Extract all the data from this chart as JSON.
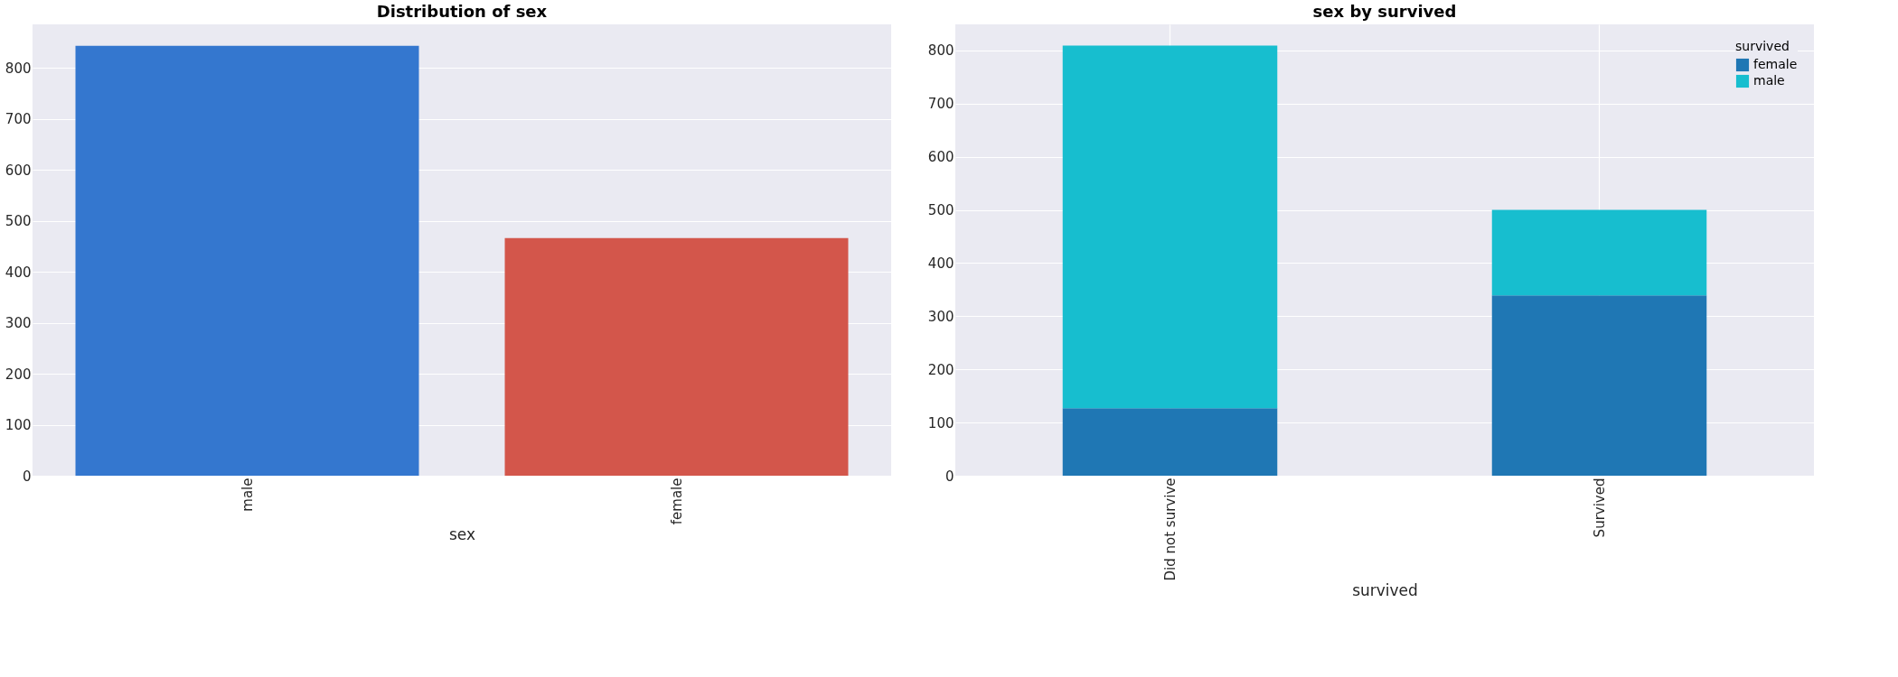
{
  "chart_data": [
    {
      "type": "bar",
      "title": "Distribution of sex",
      "xlabel": "sex",
      "categories": [
        "male",
        "female"
      ],
      "values": [
        843,
        466
      ],
      "colors": [
        "#3477cf",
        "#d3564b"
      ],
      "ylim": [
        0,
        885
      ],
      "yticks": [
        0,
        100,
        200,
        300,
        400,
        500,
        600,
        700,
        800
      ],
      "grid": "y"
    },
    {
      "type": "bar",
      "title": "sex by survived",
      "xlabel": "survived",
      "legend_title": "survived",
      "categories": [
        "Did not survive",
        "Survived"
      ],
      "stacked": true,
      "legend": "top right",
      "grid": true,
      "ylim": [
        0,
        849
      ],
      "yticks": [
        0,
        100,
        200,
        300,
        400,
        500,
        600,
        700,
        800
      ],
      "series": [
        {
          "name": "female",
          "color": "#1f77b4",
          "values": [
            127,
            339
          ]
        },
        {
          "name": "male",
          "color": "#17becf",
          "values": [
            682,
            161
          ]
        }
      ]
    }
  ]
}
